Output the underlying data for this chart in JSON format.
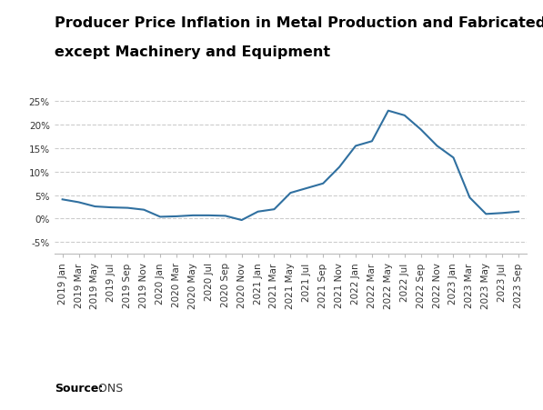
{
  "title_line1": "Producer Price Inflation in Metal Production and Fabricated Metals",
  "title_line2": "except Machinery and Equipment",
  "source_label": "Source:",
  "source_text": " ONS",
  "line_color": "#3070a0",
  "background_color": "#ffffff",
  "tick_labels": [
    "2019 Jan",
    "2019 Mar",
    "2019 May",
    "2019 Jul",
    "2019 Sep",
    "2019 Nov",
    "2020 Jan",
    "2020 Mar",
    "2020 May",
    "2020 Jul",
    "2020 Sep",
    "2020 Nov",
    "2021 Jan",
    "2021 Mar",
    "2021 May",
    "2021 Jul",
    "2021 Sep",
    "2021 Nov",
    "2022 Jan",
    "2022 Mar",
    "2022 May",
    "2022 Jul",
    "2022 Sep",
    "2022 Nov",
    "2023 Jan",
    "2023 Mar",
    "2023 May",
    "2023 Jul",
    "2023 Sep"
  ],
  "values": [
    4.1,
    3.5,
    2.6,
    2.4,
    2.3,
    1.9,
    0.4,
    0.5,
    0.7,
    0.7,
    0.6,
    -0.3,
    1.5,
    2.0,
    5.5,
    6.5,
    7.5,
    11.0,
    15.5,
    16.5,
    23.0,
    22.0,
    19.0,
    15.5,
    13.0,
    4.5,
    1.0,
    1.2,
    1.5
  ],
  "yticks": [
    -5,
    0,
    5,
    10,
    15,
    20,
    25
  ],
  "ytick_labels": [
    "-5%",
    "0%",
    "5%",
    "10%",
    "15%",
    "20%",
    "25%"
  ],
  "ylim": [
    -7.5,
    27.5
  ],
  "grid_color": "#cccccc",
  "grid_style": "--",
  "title_fontsize": 11.5,
  "tick_fontsize": 7.5,
  "source_fontsize": 9,
  "line_width": 1.5
}
